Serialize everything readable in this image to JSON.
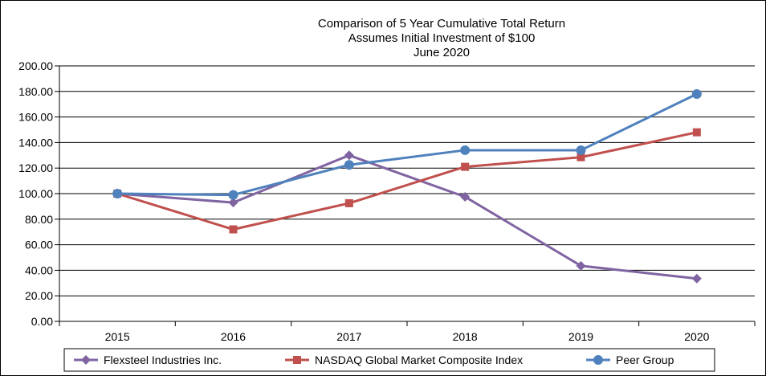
{
  "chart_data": {
    "type": "line",
    "title_lines": [
      "Comparison  of 5  Year Cumulative  Total Return",
      "Assumes Initial Investment  of $100",
      "June  2020"
    ],
    "xlabel": "",
    "ylabel": "",
    "categories": [
      "2015",
      "2016",
      "2017",
      "2018",
      "2019",
      "2020"
    ],
    "y_ticks": [
      "0.00",
      "20.00",
      "40.00",
      "60.00",
      "80.00",
      "100.00",
      "120.00",
      "140.00",
      "160.00",
      "180.00",
      "200.00"
    ],
    "ylim": [
      0,
      200
    ],
    "grid": "horizontal",
    "legend_position": "bottom",
    "series": [
      {
        "name": "Flexsteel Industries Inc.",
        "color": "#8064A2",
        "marker": "diamond",
        "values": [
          100.0,
          93.0,
          130.0,
          97.5,
          43.5,
          33.5
        ]
      },
      {
        "name": "NASDAQ Global Market Composite Index",
        "color": "#C0504D",
        "marker": "square",
        "values": [
          100.0,
          72.0,
          92.5,
          121.0,
          128.5,
          148.0
        ]
      },
      {
        "name": "Peer Group",
        "color": "#4F81BD",
        "marker": "circle",
        "values": [
          100.0,
          99.0,
          122.5,
          134.0,
          134.0,
          178.0
        ]
      }
    ]
  }
}
